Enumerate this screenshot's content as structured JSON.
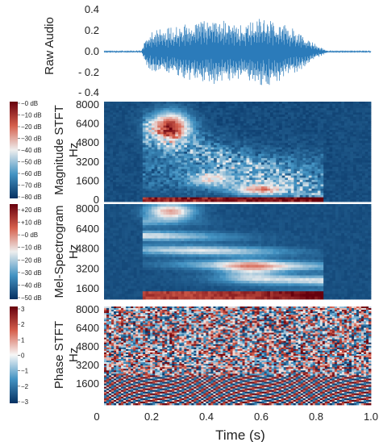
{
  "chart_data": [
    {
      "type": "line",
      "ylabel": "Raw Audio",
      "ylim": [
        -0.45,
        0.45
      ],
      "yticks": [
        "0.4",
        "0.2",
        "0.0",
        "- 0.2",
        "- 0.4"
      ],
      "xlim": [
        0,
        1.0
      ],
      "grid": false,
      "series_color": "#1f77b4",
      "envelope": {
        "x": [
          0.0,
          0.14,
          0.16,
          0.2,
          0.26,
          0.33,
          0.4,
          0.47,
          0.52,
          0.56,
          0.6,
          0.66,
          0.74,
          0.8,
          0.84,
          1.0
        ],
        "y": [
          0.005,
          0.005,
          0.18,
          0.22,
          0.24,
          0.3,
          0.34,
          0.3,
          0.26,
          0.32,
          0.35,
          0.3,
          0.18,
          0.06,
          0.005,
          0.005
        ]
      }
    },
    {
      "type": "heatmap",
      "ylabel": "Magnitude STFT",
      "unit": "Hz",
      "yticks": [
        "8000",
        "6400",
        "4800",
        "3200",
        "1600",
        "0"
      ],
      "colorbar": {
        "ticks": [
          "−0 dB",
          "−10 dB",
          "−20 dB",
          "−30 dB",
          "−40 dB",
          "−50 dB",
          "−60 dB",
          "−70 dB",
          "−80 dB"
        ],
        "colors": [
          "#67000d",
          "#e5e5e5",
          "#053061"
        ]
      }
    },
    {
      "type": "heatmap",
      "ylabel": "Mel-Spectrogram",
      "unit": "Hz",
      "yticks": [
        "8000",
        "6400",
        "4800",
        "3200",
        "1600"
      ],
      "colorbar": {
        "ticks": [
          "+20 dB",
          "+10 dB",
          "−0 dB",
          "−10 dB",
          "−20 dB",
          "−30 dB",
          "−40 dB",
          "−50 dB"
        ],
        "colors": [
          "#67000d",
          "#e5e5e5",
          "#053061"
        ]
      }
    },
    {
      "type": "heatmap",
      "ylabel": "Phase STFT",
      "unit": "Hz",
      "yticks": [
        "8000",
        "6400",
        "4800",
        "3200",
        "1600"
      ],
      "colorbar": {
        "ticks": [
          "3",
          "2",
          "1",
          "0",
          "−1",
          "−2",
          "−3"
        ],
        "colors": [
          "#67000d",
          "#f7f7f7",
          "#053061"
        ]
      }
    }
  ],
  "x_axis": {
    "ticks": [
      "0",
      "0.2",
      "0.4",
      "0.6",
      "0.8",
      "1.0"
    ],
    "label": "Time (s)"
  }
}
